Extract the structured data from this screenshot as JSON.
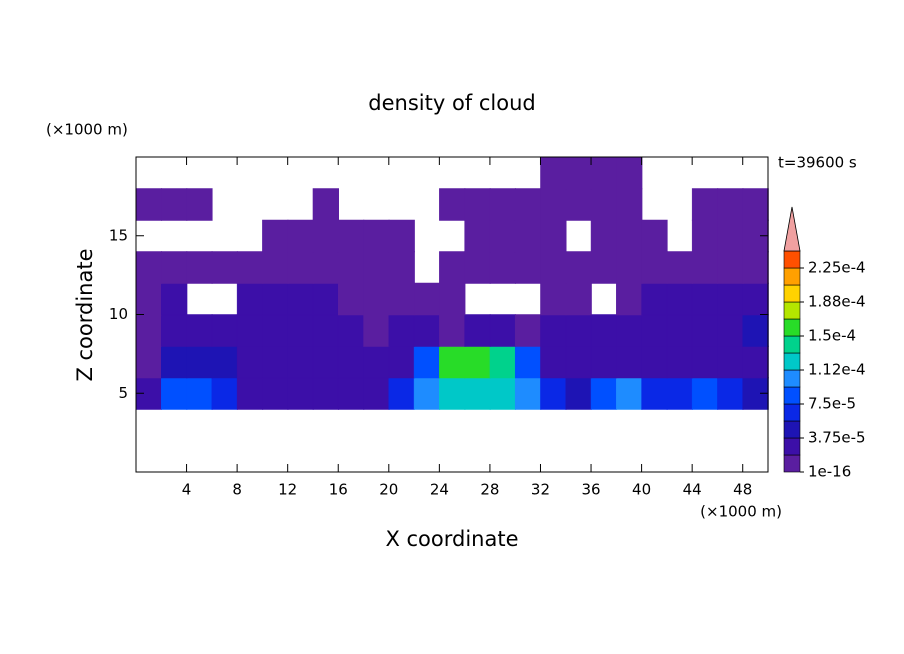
{
  "chart_data": {
    "type": "heatmap",
    "title": "density of cloud",
    "xlabel": "X coordinate",
    "ylabel": "Z coordinate",
    "xunit": "(×1000 m)",
    "yunit": "(×1000 m)",
    "annotation": "t=39600 s",
    "xlim": [
      0,
      50
    ],
    "ylim": [
      0,
      20
    ],
    "xticks": [
      4,
      8,
      12,
      16,
      20,
      24,
      28,
      32,
      36,
      40,
      44,
      48
    ],
    "yticks": [
      5,
      10,
      15
    ],
    "x": [
      1,
      3,
      5,
      7,
      9,
      11,
      13,
      15,
      17,
      19,
      21,
      23,
      25,
      27,
      29,
      31,
      33,
      35,
      37,
      39,
      41,
      43,
      45,
      47,
      49
    ],
    "y": [
      1,
      3,
      5,
      7,
      9,
      11,
      13,
      15,
      17,
      19
    ],
    "z": [
      [
        null,
        null,
        null,
        null,
        null,
        null,
        null,
        null,
        null,
        null,
        null,
        null,
        null,
        null,
        null,
        null,
        null,
        null,
        null,
        null,
        null,
        null,
        null,
        null,
        null
      ],
      [
        null,
        null,
        null,
        null,
        null,
        null,
        null,
        null,
        null,
        null,
        null,
        null,
        null,
        null,
        null,
        null,
        null,
        null,
        null,
        null,
        null,
        null,
        null,
        null,
        null
      ],
      [
        2e-05,
        8e-05,
        9e-05,
        6e-05,
        3e-05,
        2.5e-05,
        2.5e-05,
        2.5e-05,
        2.5e-05,
        3e-05,
        6e-05,
        0.00011,
        0.00013,
        0.00013,
        0.00012,
        0.00011,
        7e-05,
        4e-05,
        9e-05,
        0.0001,
        6e-05,
        7e-05,
        8e-05,
        7e-05,
        5e-05
      ],
      [
        1.5e-05,
        4e-05,
        5e-05,
        4.5e-05,
        3e-05,
        2.5e-05,
        2e-05,
        2.5e-05,
        2e-05,
        2e-05,
        2.5e-05,
        9e-05,
        0.00015,
        0.00016,
        0.00014,
        8e-05,
        3e-05,
        2.5e-05,
        3e-05,
        3e-05,
        2.5e-05,
        2.5e-05,
        2.5e-05,
        2e-05,
        2e-05
      ],
      [
        1.5e-05,
        2.5e-05,
        2.5e-05,
        2e-05,
        2.5e-05,
        2e-05,
        2e-05,
        2.5e-05,
        2e-05,
        1.5e-05,
        2e-05,
        2e-05,
        1.5e-05,
        2e-05,
        2e-05,
        1.5e-05,
        2e-05,
        2e-05,
        2e-05,
        2e-05,
        2.5e-05,
        3e-05,
        3e-05,
        3.5e-05,
        4e-05
      ],
      [
        1e-05,
        2e-05,
        null,
        null,
        2e-05,
        2e-05,
        2e-05,
        2e-05,
        1.5e-05,
        1e-05,
        1e-05,
        1e-05,
        1e-05,
        null,
        null,
        null,
        1e-05,
        1.5e-05,
        null,
        1e-05,
        2e-05,
        2.5e-05,
        3e-05,
        3e-05,
        2.5e-05
      ],
      [
        1e-05,
        1e-05,
        1e-05,
        1.5e-05,
        1.5e-05,
        1e-05,
        1e-05,
        1e-05,
        5e-06,
        5e-06,
        5e-06,
        null,
        5e-06,
        5e-06,
        5e-06,
        1e-05,
        1e-05,
        1e-05,
        5e-06,
        5e-06,
        5e-06,
        1e-05,
        1e-05,
        1e-05,
        1e-05
      ],
      [
        null,
        null,
        null,
        null,
        null,
        5e-06,
        5e-06,
        5e-06,
        5e-06,
        5e-06,
        5e-06,
        null,
        null,
        5e-06,
        5e-06,
        5e-06,
        5e-06,
        null,
        5e-06,
        5e-06,
        5e-06,
        null,
        5e-06,
        5e-06,
        5e-06
      ],
      [
        5e-06,
        5e-06,
        5e-06,
        null,
        null,
        null,
        null,
        5e-06,
        null,
        null,
        null,
        null,
        5e-06,
        5e-06,
        5e-06,
        5e-06,
        5e-06,
        5e-06,
        5e-06,
        5e-06,
        null,
        null,
        5e-06,
        5e-06,
        5e-06
      ],
      [
        null,
        null,
        null,
        null,
        null,
        null,
        null,
        null,
        null,
        null,
        null,
        null,
        null,
        null,
        null,
        null,
        5e-06,
        5e-06,
        5e-06,
        5e-06,
        null,
        null,
        null,
        null,
        null
      ]
    ],
    "colorbar": {
      "levels": [
        1e-16,
        1.875e-05,
        3.75e-05,
        5.625e-05,
        7.5e-05,
        9.375e-05,
        0.0001125,
        0.00013125,
        0.00015,
        0.00016875,
        0.0001875,
        0.00020625,
        0.000225,
        0.00024375
      ],
      "colors": [
        "#5a1ea0",
        "#3c0fa8",
        "#1e14b4",
        "#0a28e6",
        "#0050ff",
        "#1e8cff",
        "#00c8c8",
        "#00d28c",
        "#28dc28",
        "#b4e600",
        "#ffd200",
        "#ffa000",
        "#ff5000"
      ],
      "extend_color": "#f0a0a0",
      "ticks": [
        {
          "value": 1e-16,
          "label": "1e-16"
        },
        {
          "value": 3.75e-05,
          "label": "3.75e-5"
        },
        {
          "value": 7.5e-05,
          "label": "7.5e-5"
        },
        {
          "value": 0.0001125,
          "label": "1.12e-4"
        },
        {
          "value": 0.00015,
          "label": "1.5e-4"
        },
        {
          "value": 0.0001875,
          "label": "1.88e-4"
        },
        {
          "value": 0.000225,
          "label": "2.25e-4"
        }
      ]
    }
  }
}
